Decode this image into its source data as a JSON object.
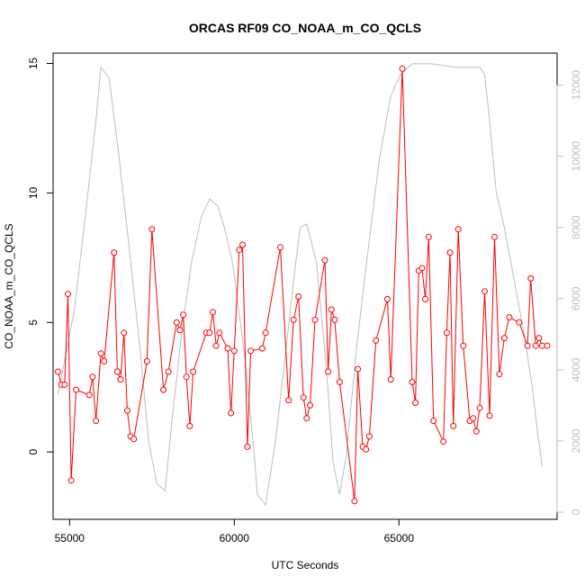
{
  "chart_data": {
    "type": "line",
    "title": "ORCAS RF09 CO_NOAA_m_CO_QCLS",
    "xlabel": "UTC Seconds",
    "ylabel": "CO_NOAA_m_CO_QCLS",
    "xlim": [
      54500,
      69800
    ],
    "ylim": [
      -2.6,
      15.4
    ],
    "y2lim": [
      -200,
      12900
    ],
    "x_ticks": [
      55000,
      60000,
      65000
    ],
    "x_tick_labels": [
      "55000",
      "60000",
      "65000"
    ],
    "y_ticks": [
      0,
      5,
      10,
      15
    ],
    "y_tick_labels": [
      "0",
      "5",
      "10",
      "15"
    ],
    "y2_ticks": [
      0,
      2000,
      4000,
      6000,
      8000,
      10000,
      12000
    ],
    "y2_tick_labels": [
      "0",
      "2000",
      "4000",
      "6000",
      "8000",
      "10000",
      "12000"
    ],
    "grid": false,
    "colors": {
      "series": "#ff0000",
      "altitude": "#bebebe",
      "axis": "#000000"
    },
    "series": [
      {
        "x": [
          54650,
          54750,
          54850,
          54950,
          55050,
          55200,
          55600,
          55700,
          55800,
          55950,
          56050,
          56350,
          56450,
          56550,
          56650,
          56750,
          56850,
          56950,
          57350,
          57500,
          57850,
          58000,
          58250,
          58350,
          58450,
          58550,
          58650,
          58750,
          59150,
          59250,
          59350,
          59450,
          59550,
          59800,
          59900,
          60000,
          60150,
          60250,
          60400,
          60500,
          60850,
          60950,
          61400,
          61650,
          61800,
          61950,
          62100,
          62200,
          62300,
          62450,
          62750,
          62850,
          62950,
          63050,
          63200,
          63650,
          63750,
          63900,
          64000,
          64100,
          64300,
          64650,
          64750,
          65100,
          65400,
          65500,
          65600,
          65700,
          65800,
          65900,
          66050,
          66350,
          66450,
          66550,
          66650,
          66800,
          66950,
          67150,
          67250,
          67350,
          67450,
          67600,
          67750,
          67900,
          68050,
          68200,
          68350,
          68650,
          68900,
          69000,
          69150,
          69250,
          69350,
          69500
        ],
        "y": [
          3.1,
          2.6,
          2.6,
          6.1,
          -1.1,
          2.4,
          2.2,
          2.9,
          1.2,
          3.8,
          3.5,
          7.7,
          3.1,
          2.8,
          4.6,
          1.6,
          0.6,
          0.5,
          3.5,
          8.6,
          2.4,
          3.1,
          5.0,
          4.7,
          5.3,
          2.9,
          1.0,
          3.1,
          4.6,
          4.6,
          5.4,
          4.1,
          4.6,
          4.0,
          1.5,
          3.9,
          7.8,
          8.0,
          0.2,
          3.9,
          4.0,
          4.6,
          7.9,
          2.0,
          5.1,
          6.0,
          2.1,
          1.3,
          1.8,
          5.1,
          7.4,
          3.1,
          5.5,
          5.1,
          2.7,
          -1.9,
          3.2,
          0.2,
          0.1,
          0.6,
          4.3,
          5.9,
          2.8,
          14.8,
          2.7,
          1.9,
          7.0,
          7.1,
          5.9,
          8.3,
          1.2,
          0.4,
          4.6,
          7.7,
          1.0,
          8.6,
          4.1,
          1.2,
          1.3,
          0.8,
          1.7,
          6.2,
          1.4,
          8.3,
          3.0,
          4.4,
          5.2,
          5.0,
          4.1,
          6.7,
          4.1,
          4.4,
          4.1,
          4.1
        ]
      },
      {
        "axis": "right",
        "x": [
          54650,
          55150,
          55500,
          55800,
          55950,
          56200,
          56500,
          56800,
          57150,
          57400,
          57650,
          57900,
          58100,
          58400,
          58700,
          59000,
          59250,
          59500,
          59700,
          59950,
          60300,
          60600,
          60700,
          60950,
          61250,
          61500,
          61800,
          62000,
          62200,
          62500,
          62800,
          63000,
          63200,
          63400,
          63700,
          64000,
          64400,
          64750,
          65050,
          65400,
          66000,
          66700,
          67450,
          67600,
          67750,
          67950,
          68200,
          68500,
          68800,
          69050,
          69200,
          69350
        ],
        "y": [
          3300,
          5700,
          8500,
          11000,
          12500,
          12200,
          10000,
          7500,
          4500,
          2000,
          800,
          600,
          2500,
          5000,
          7000,
          8300,
          8800,
          8600,
          8000,
          7000,
          4500,
          1700,
          500,
          200,
          2000,
          4000,
          6500,
          8000,
          8100,
          7000,
          4000,
          1400,
          500,
          1600,
          4500,
          6900,
          9900,
          11700,
          12300,
          12600,
          12600,
          12500,
          12500,
          12300,
          11000,
          9000,
          8000,
          6500,
          5000,
          3500,
          2300,
          1300
        ]
      }
    ]
  }
}
